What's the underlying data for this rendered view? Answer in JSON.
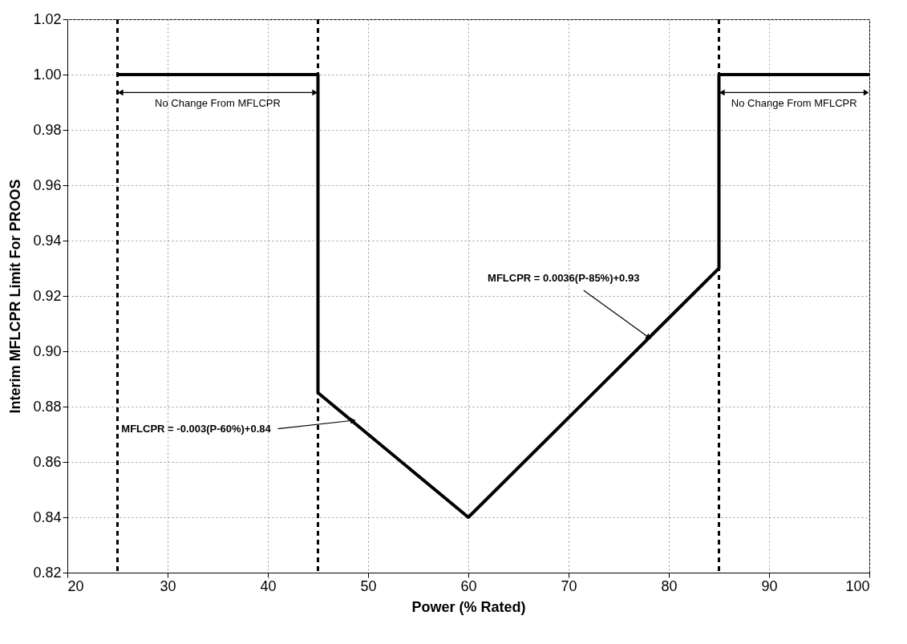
{
  "chart_data": {
    "type": "line",
    "xlabel": "Power (% Rated)",
    "ylabel": "Interim MFLCPR Limit For PROOS",
    "x": [
      25,
      45,
      45,
      60,
      85,
      85,
      100
    ],
    "series": [
      {
        "color": "#000000",
        "values": [
          1.0,
          1.0,
          0.885,
          0.84,
          0.93,
          1.0,
          1.0
        ]
      }
    ],
    "xlim": [
      20,
      100
    ],
    "xticks": [
      20,
      30,
      40,
      50,
      60,
      70,
      80,
      90,
      100
    ],
    "ylim": [
      0.82,
      1.02
    ],
    "yticks": [
      0.82,
      0.84,
      0.86,
      0.88,
      {
        "value": 0.9,
        "label": "0.90"
      },
      0.92,
      0.94,
      0.96,
      0.98,
      {
        "value": 1,
        "label": "1.00"
      },
      1.02
    ],
    "grid": true,
    "marker": "none",
    "line_style": "solid",
    "ref_lines": [
      {
        "axis": "x",
        "value": 25,
        "color": "#000000",
        "line_style": "dashed"
      },
      {
        "axis": "x",
        "value": 45,
        "color": "#000000",
        "line_style": "dashed"
      },
      {
        "axis": "x",
        "value": 85,
        "color": "#000000",
        "line_style": "dashed"
      }
    ],
    "annotations": [
      "No Change From MFLCPR",
      "No Change From MFLCPR",
      {
        "text": "MFLCPR = -0.003(P-60%)+0.84",
        "x": 48.5,
        "y": 0.875
      },
      {
        "text": "MFLCPR = 0.0036(P-85%)+0.93",
        "x": 78,
        "y": 0.905
      }
    ]
  }
}
